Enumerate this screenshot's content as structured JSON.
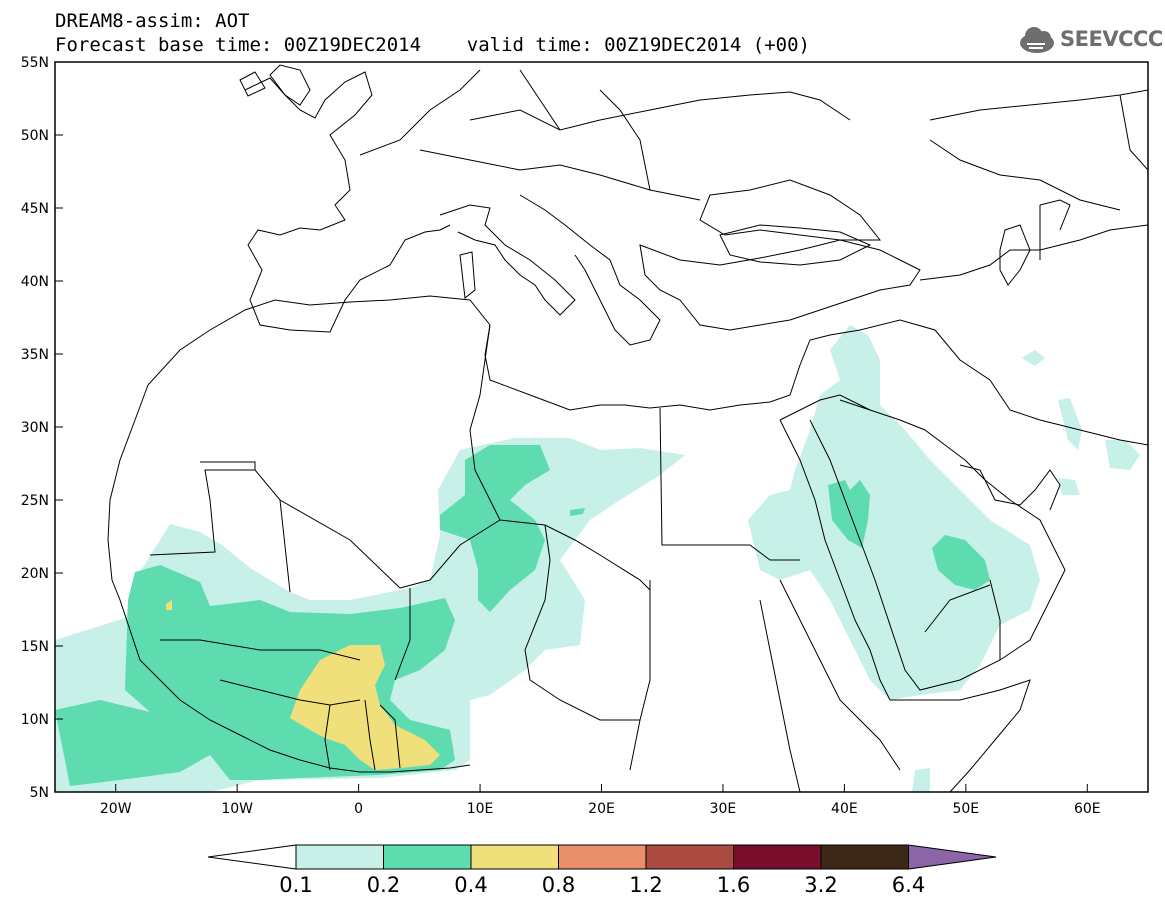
{
  "title": {
    "line1": "DREAM8-assim: AOT",
    "line2": "Forecast base time: 00Z19DEC2014    valid time: 00Z19DEC2014 (+00)"
  },
  "logo": {
    "text": "SEEVCCC",
    "icon": "cloud-logo-icon"
  },
  "map": {
    "latitude_labels": [
      "55N",
      "50N",
      "45N",
      "40N",
      "35N",
      "30N",
      "25N",
      "20N",
      "15N",
      "10N",
      "5N"
    ],
    "longitude_labels": [
      "20W",
      "10W",
      "0",
      "10E",
      "20E",
      "30E",
      "40E",
      "50E",
      "60E"
    ]
  },
  "colorbar": {
    "labels": [
      "0.1",
      "0.2",
      "0.4",
      "0.8",
      "1.2",
      "1.6",
      "3.2",
      "6.4"
    ],
    "colors": [
      "#ffffff",
      "#c6f0e8",
      "#5edcb0",
      "#f0e07c",
      "#e8906c",
      "#aa4a40",
      "#7a0c2c",
      "#3c2818",
      "#8c64a8"
    ]
  },
  "colors": {
    "aot_0.1": "#c6f0e8",
    "aot_0.2": "#5edcb0",
    "aot_0.4": "#f0e07c",
    "border": "#000000"
  }
}
